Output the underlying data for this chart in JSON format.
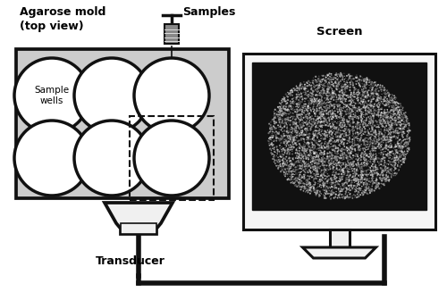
{
  "bg_color": "#ffffff",
  "mold_color": "#cccccc",
  "mold_border": "#111111",
  "well_fill": "#ffffff",
  "text_color": "#000000",
  "title_agarose": "Agarose mold\n(top view)",
  "title_screen": "Screen",
  "label_samples": "Samples",
  "label_wells": "Sample\nwells",
  "label_transducer": "Transducer",
  "lw": 2.2
}
